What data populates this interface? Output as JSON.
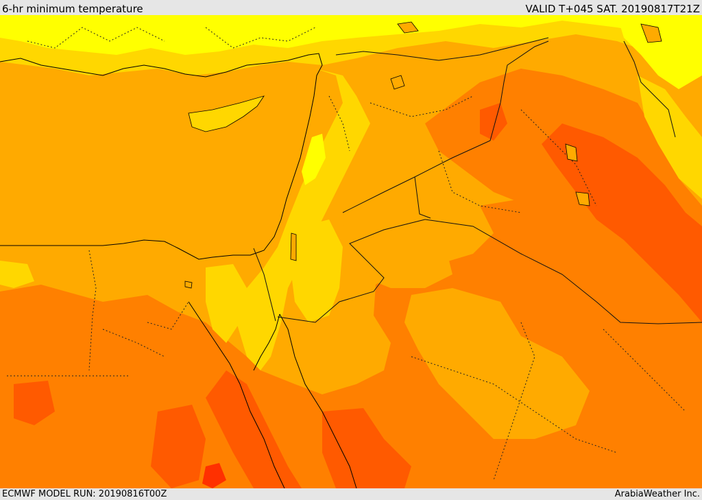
{
  "header": {
    "title": "6-hr minimum temperature",
    "valid": "VALID T+045 SAT. 20190817T21Z"
  },
  "footer": {
    "model_run": "ECMWF MODEL RUN: 20190816T00Z",
    "credit": "ArabiaWeather Inc."
  },
  "map": {
    "variable": "6-hr minimum temperature",
    "region": "Eastern Mediterranean, Levant, Egypt, Northern Arabia",
    "colors": {
      "band_cool": "#ffff00",
      "band_mild": "#ffd700",
      "band_warm": "#ffaa00",
      "band_hot": "#ff8000",
      "band_hotter": "#ff5a00",
      "band_hottest": "#ff3000",
      "coastline": "#000000",
      "border": "#111111",
      "admin_border": "#222222"
    }
  }
}
